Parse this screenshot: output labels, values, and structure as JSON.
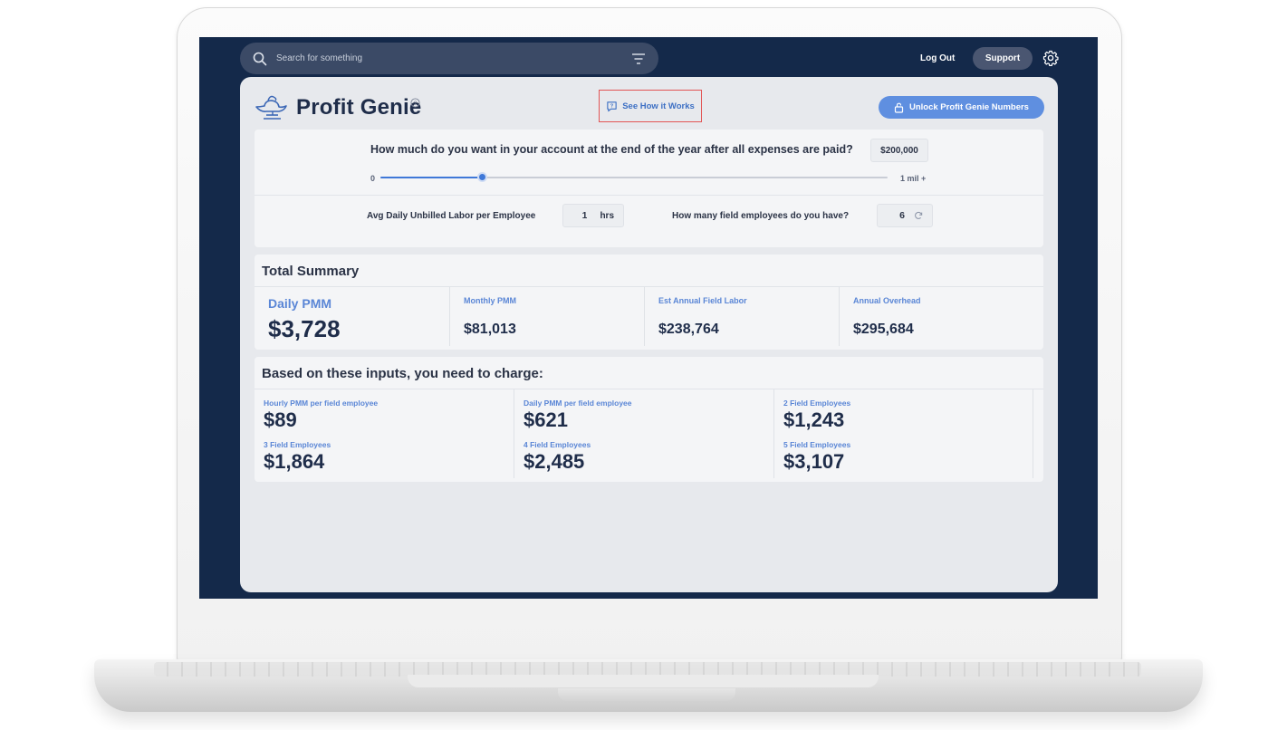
{
  "search": {
    "placeholder": "Search for something"
  },
  "topbar": {
    "logout_label": "Log Out",
    "support_label": "Support"
  },
  "header": {
    "title": "Profit Genie",
    "see_how_label": "See How it Works",
    "unlock_label": "Unlock Profit Genie Numbers"
  },
  "inputs": {
    "goal_question": "How much do you want in your account at the end of the year after all expenses are paid?",
    "goal_value": "$200,000",
    "slider_min": "0",
    "slider_max": "1 mil +",
    "slider_fraction": 0.2,
    "labor_label": "Avg Daily Unbilled Labor per Employee",
    "labor_value": "1",
    "labor_unit": "hrs",
    "employees_label": "How many field employees do you have?",
    "employees_value": "6"
  },
  "summary": {
    "title": "Total Summary",
    "daily_label": "Daily PMM",
    "daily_value": "$3,728",
    "items": [
      {
        "label": "Monthly PMM",
        "value": "$81,013"
      },
      {
        "label": "Est Annual Field Labor",
        "value": "$238,764"
      },
      {
        "label": "Annual Overhead",
        "value": "$295,684"
      }
    ]
  },
  "charge": {
    "title": "Based on these inputs, you need to charge:",
    "items": [
      {
        "label": "Hourly PMM per field employee",
        "value": "$89"
      },
      {
        "label": "Daily PMM per field employee",
        "value": "$621"
      },
      {
        "label": "2 Field Employees",
        "value": "$1,243"
      },
      {
        "label": "3 Field Employees",
        "value": "$1,864"
      },
      {
        "label": "4 Field Employees",
        "value": "$2,485"
      },
      {
        "label": "5 Field Employees",
        "value": "$3,107"
      }
    ]
  },
  "colors": {
    "screen_bg": "#14294a",
    "accent": "#5f8fe0",
    "label_blue": "#5a86d6",
    "highlight_border": "#e25555"
  },
  "icons": [
    "search-icon",
    "filter-icon",
    "gear-icon",
    "genie-lamp-logo",
    "help-icon",
    "chat-help-icon",
    "lock-icon",
    "refresh-icon"
  ]
}
